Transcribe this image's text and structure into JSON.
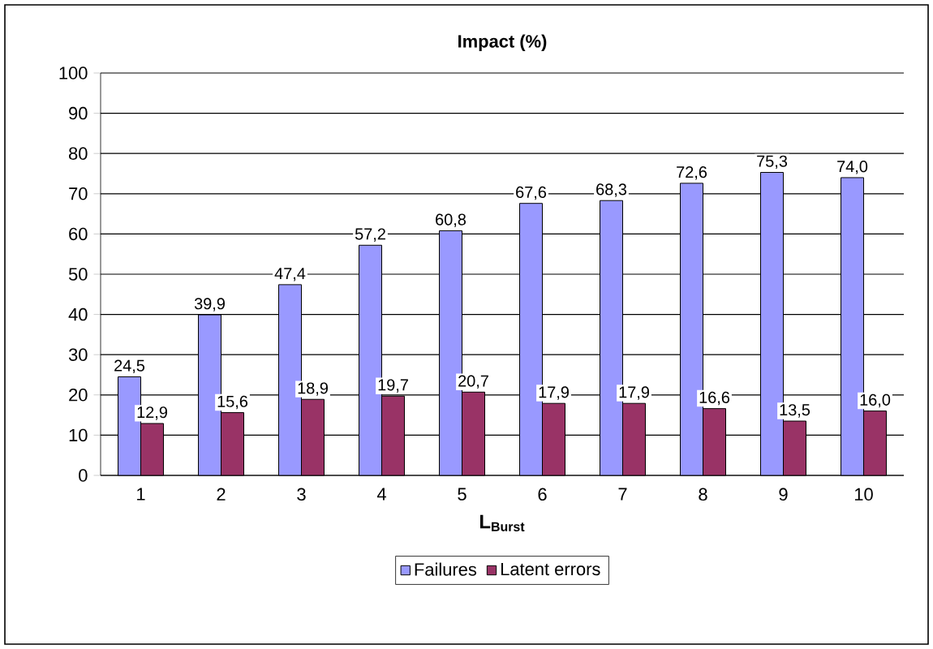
{
  "chart_data": {
    "type": "bar",
    "title": "Impact (%)",
    "xlabel": "L$_{Burst}$",
    "categories": [
      "1",
      "2",
      "3",
      "4",
      "5",
      "6",
      "7",
      "8",
      "9",
      "10"
    ],
    "series": [
      {
        "name": "Failures",
        "color": "#9999ff",
        "values": [
          24.5,
          39.9,
          47.4,
          57.2,
          60.8,
          67.6,
          68.3,
          72.6,
          75.3,
          74.0
        ],
        "value_labels": [
          "24,5",
          "39,9",
          "47,4",
          "57,2",
          "60,8",
          "67,6",
          "68,3",
          "72,6",
          "75,3",
          "74,0"
        ]
      },
      {
        "name": "Latent errors",
        "color": "#993366",
        "values": [
          12.9,
          15.6,
          18.9,
          19.7,
          20.7,
          17.9,
          17.9,
          16.6,
          13.5,
          16.0
        ],
        "value_labels": [
          "12,9",
          "15,6",
          "18,9",
          "19,7",
          "20,7",
          "17,9",
          "17,9",
          "16,6",
          "13,5",
          "16,0"
        ]
      }
    ],
    "ylim": [
      0,
      100
    ],
    "yticks": [
      0,
      10,
      20,
      30,
      40,
      50,
      60,
      70,
      80,
      90,
      100
    ],
    "grid": "y",
    "legend": "bottom"
  }
}
